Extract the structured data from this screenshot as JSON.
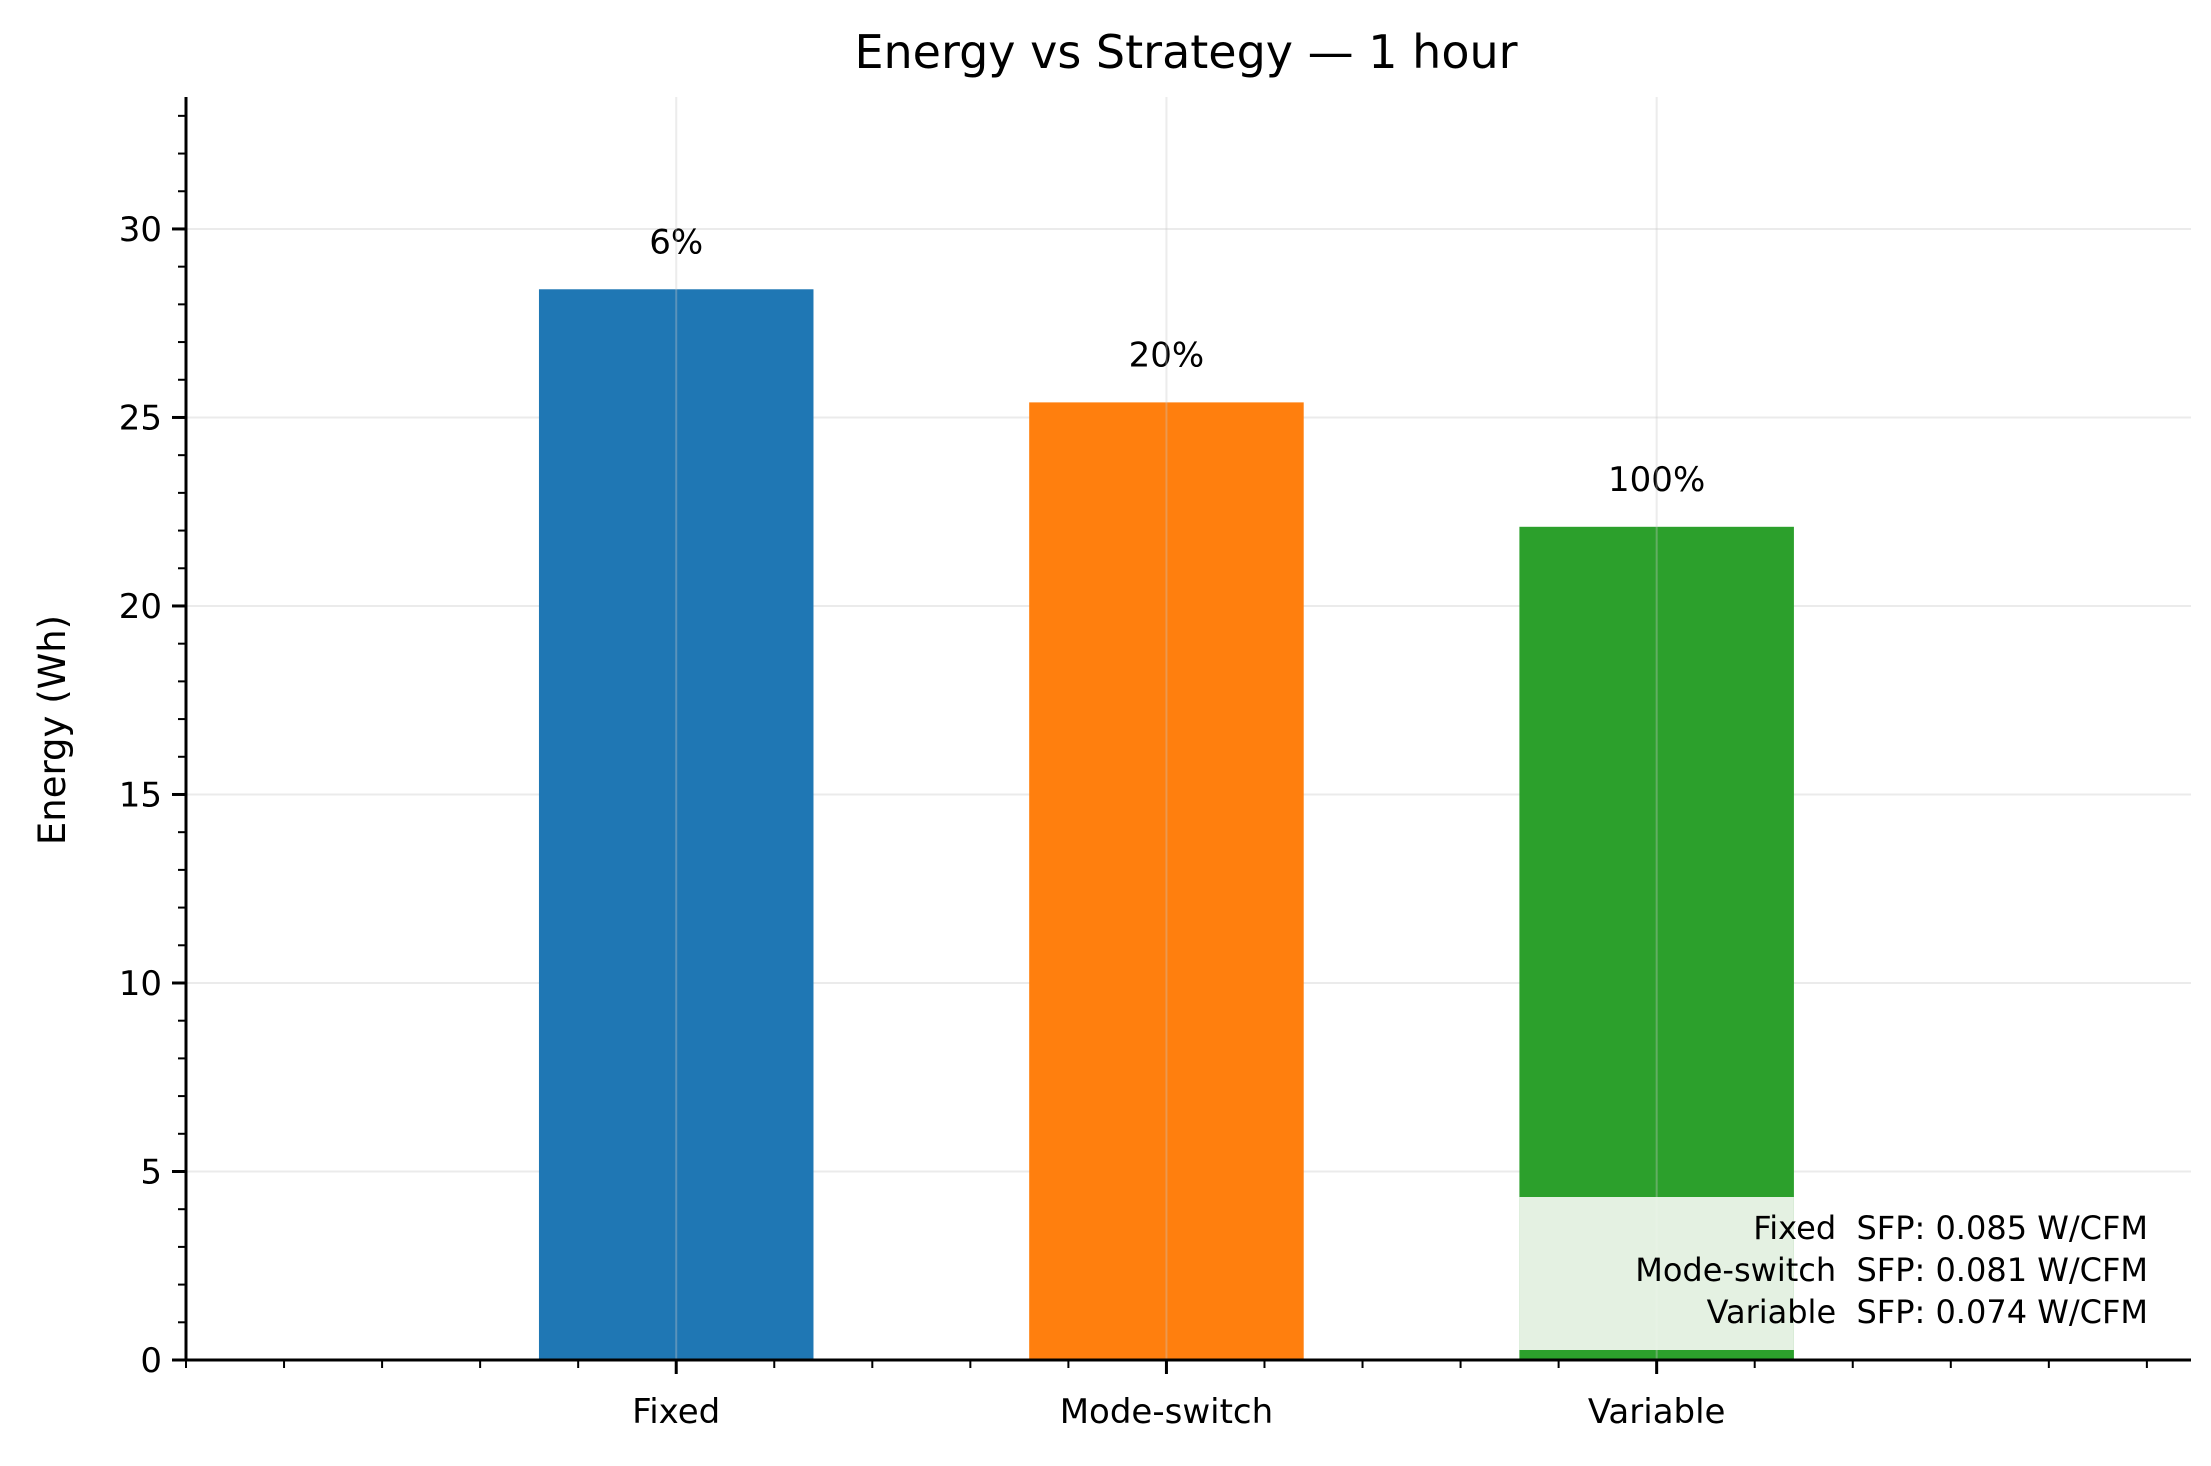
{
  "chart_data": {
    "type": "bar",
    "title": "Energy vs Strategy — 1 hour",
    "xlabel": "",
    "ylabel": "Energy (Wh)",
    "categories": [
      "Fixed",
      "Mode-switch",
      "Variable"
    ],
    "values": [
      28.4,
      25.4,
      22.1
    ],
    "bar_labels": [
      "6%",
      "20%",
      "100%"
    ],
    "colors": [
      "#1f77b4",
      "#ff7f0e",
      "#2ca02c"
    ],
    "ylim": [
      0,
      33.5
    ],
    "yticks": [
      0,
      5,
      10,
      15,
      20,
      25,
      30
    ],
    "grid": true,
    "annotation": {
      "placement": "bottom-right",
      "lines": [
        "Fixed  SFP: 0.085 W/CFM",
        "Mode-switch  SFP: 0.081 W/CFM",
        "Variable  SFP: 0.074 W/CFM"
      ]
    }
  }
}
